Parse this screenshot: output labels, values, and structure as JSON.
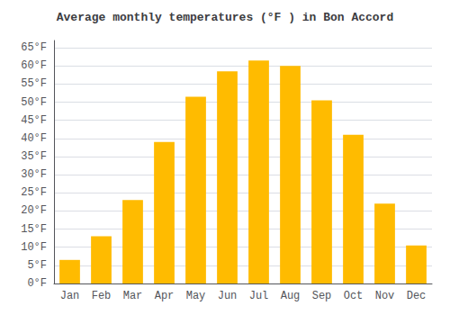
{
  "chart_data": {
    "type": "bar",
    "title": "Average monthly temperatures (°F ) in Bon Accord",
    "categories": [
      "Jan",
      "Feb",
      "Mar",
      "Apr",
      "May",
      "Jun",
      "Jul",
      "Aug",
      "Sep",
      "Oct",
      "Nov",
      "Dec"
    ],
    "values": [
      6.5,
      13,
      23,
      39,
      51.5,
      58.5,
      61.5,
      60,
      50.5,
      41,
      22,
      10.5
    ],
    "color": "#FFBB00",
    "ylim": [
      0,
      67
    ],
    "yticks": [
      {
        "value": 0,
        "label": "0°F"
      },
      {
        "value": 5,
        "label": "5°F"
      },
      {
        "value": 10,
        "label": "10°F"
      },
      {
        "value": 15,
        "label": "15°F"
      },
      {
        "value": 20,
        "label": "20°F"
      },
      {
        "value": 25,
        "label": "25°F"
      },
      {
        "value": 30,
        "label": "30°F"
      },
      {
        "value": 35,
        "label": "35°F"
      },
      {
        "value": 40,
        "label": "40°F"
      },
      {
        "value": 45,
        "label": "45°F"
      },
      {
        "value": 50,
        "label": "50°F"
      },
      {
        "value": 55,
        "label": "55°F"
      },
      {
        "value": 60,
        "label": "60°F"
      },
      {
        "value": 65,
        "label": "65°F"
      }
    ],
    "grid": true
  }
}
